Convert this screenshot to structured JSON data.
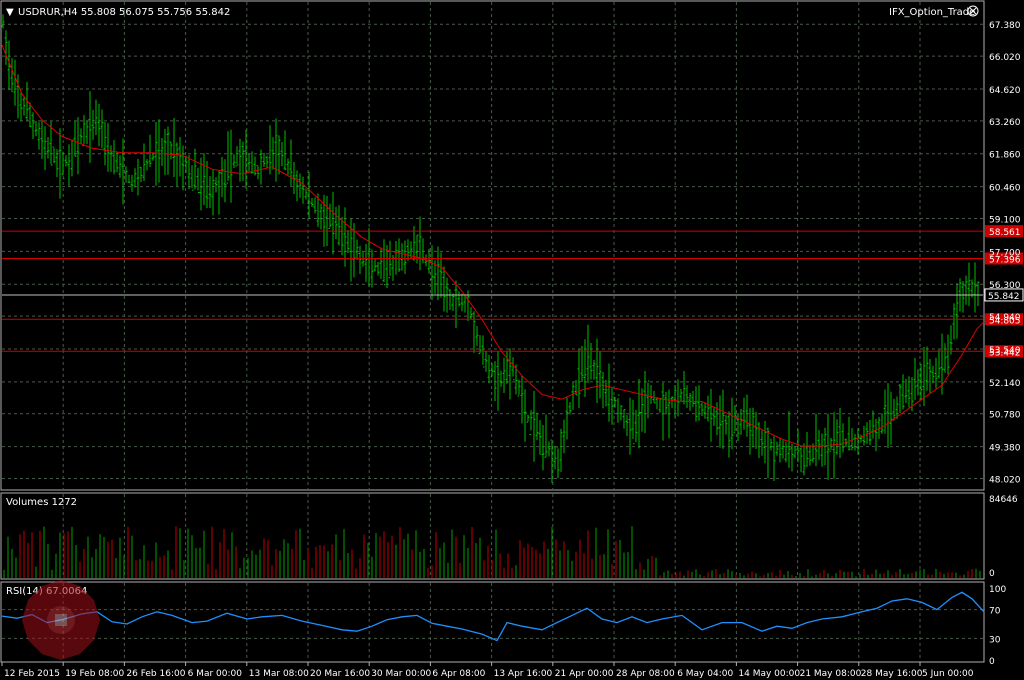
{
  "window": {
    "symbol_info": "USDRUR,H4  55.808 56.075 55.756 55.842",
    "indicator_name": "IFX_Option_Trade",
    "indicator_icon": "close-circle-icon"
  },
  "colors": {
    "background": "#000000",
    "grid": "#4a5a4a",
    "bull_bar": "#00c000",
    "ma_line": "#e00000",
    "hline": "#d00000",
    "price_line": "#c0c0c0",
    "rsi_line": "#1e90ff",
    "vol_up": "#00a000",
    "vol_down": "#c00000",
    "text": "#ffffff"
  },
  "chart_data": [
    {
      "type": "ohlc",
      "title": "USDRUR,H4",
      "y_ticks": [
        "67.380",
        "66.020",
        "64.620",
        "63.260",
        "61.860",
        "60.460",
        "59.100",
        "57.700",
        "56.300",
        "54.940",
        "53.540",
        "52.140",
        "50.780",
        "49.380",
        "48.020"
      ],
      "ylim": [
        47.7,
        67.9
      ],
      "x_ticks": [
        "12 Feb 2015",
        "19 Feb 08:00",
        "26 Feb 16:00",
        "6 Mar 00:00",
        "13 Mar 08:00",
        "20 Mar 16:00",
        "30 Mar 00:00",
        "6 Apr 08:00",
        "13 Apr 16:00",
        "21 Apr 00:00",
        "28 Apr 08:00",
        "6 May 04:00",
        "14 May 00:00",
        "21 May 08:00",
        "28 May 16:00",
        "5 Jun 00:00"
      ],
      "price_path": [
        [
          0,
          67.4
        ],
        [
          10,
          64.6
        ],
        [
          25,
          63.6
        ],
        [
          40,
          62.3
        ],
        [
          60,
          61.3
        ],
        [
          80,
          62.6
        ],
        [
          95,
          63.4
        ],
        [
          110,
          61.6
        ],
        [
          130,
          60.6
        ],
        [
          150,
          61.8
        ],
        [
          170,
          62.1
        ],
        [
          190,
          60.9
        ],
        [
          210,
          60.3
        ],
        [
          235,
          61.8
        ],
        [
          255,
          61.2
        ],
        [
          275,
          62.1
        ],
        [
          295,
          60.6
        ],
        [
          310,
          59.7
        ],
        [
          330,
          58.8
        ],
        [
          345,
          58.1
        ],
        [
          360,
          57.3
        ],
        [
          380,
          56.8
        ],
        [
          400,
          57.4
        ],
        [
          415,
          58.1
        ],
        [
          430,
          56.8
        ],
        [
          450,
          55.6
        ],
        [
          465,
          55.6
        ],
        [
          480,
          53.2
        ],
        [
          495,
          52.2
        ],
        [
          510,
          52.6
        ],
        [
          525,
          50.6
        ],
        [
          540,
          49.6
        ],
        [
          555,
          48.9
        ],
        [
          570,
          51.6
        ],
        [
          585,
          53.2
        ],
        [
          600,
          52.1
        ],
        [
          615,
          51.1
        ],
        [
          630,
          50.1
        ],
        [
          645,
          51.6
        ],
        [
          660,
          51.1
        ],
        [
          680,
          51.6
        ],
        [
          695,
          51.1
        ],
        [
          710,
          50.6
        ],
        [
          725,
          50.2
        ],
        [
          745,
          50.6
        ],
        [
          760,
          49.6
        ],
        [
          775,
          49.3
        ],
        [
          790,
          49.1
        ],
        [
          805,
          48.9
        ],
        [
          820,
          49.3
        ],
        [
          840,
          49.6
        ],
        [
          855,
          49.6
        ],
        [
          870,
          50.1
        ],
        [
          885,
          50.6
        ],
        [
          900,
          51.6
        ],
        [
          915,
          52.1
        ],
        [
          930,
          52.6
        ],
        [
          945,
          53.1
        ],
        [
          955,
          55.6
        ],
        [
          965,
          56.3
        ],
        [
          975,
          56.1
        ],
        [
          982,
          55.8
        ]
      ],
      "ma_path": [
        [
          0,
          66.5
        ],
        [
          20,
          64.4
        ],
        [
          40,
          63.3
        ],
        [
          60,
          62.6
        ],
        [
          90,
          62.1
        ],
        [
          120,
          61.9
        ],
        [
          150,
          61.9
        ],
        [
          180,
          61.8
        ],
        [
          210,
          61.2
        ],
        [
          240,
          61.0
        ],
        [
          270,
          61.3
        ],
        [
          300,
          60.6
        ],
        [
          320,
          59.8
        ],
        [
          340,
          59.0
        ],
        [
          360,
          58.3
        ],
        [
          380,
          57.8
        ],
        [
          400,
          57.6
        ],
        [
          420,
          57.4
        ],
        [
          440,
          57.0
        ],
        [
          460,
          56.0
        ],
        [
          480,
          54.8
        ],
        [
          500,
          53.4
        ],
        [
          520,
          52.4
        ],
        [
          540,
          51.6
        ],
        [
          560,
          51.4
        ],
        [
          580,
          51.8
        ],
        [
          600,
          52.0
        ],
        [
          620,
          51.8
        ],
        [
          640,
          51.6
        ],
        [
          660,
          51.4
        ],
        [
          680,
          51.3
        ],
        [
          700,
          51.3
        ],
        [
          720,
          50.9
        ],
        [
          740,
          50.5
        ],
        [
          760,
          50.1
        ],
        [
          780,
          49.7
        ],
        [
          800,
          49.4
        ],
        [
          820,
          49.4
        ],
        [
          840,
          49.5
        ],
        [
          860,
          49.8
        ],
        [
          880,
          50.2
        ],
        [
          900,
          50.8
        ],
        [
          920,
          51.4
        ],
        [
          940,
          52.0
        ],
        [
          960,
          53.3
        ],
        [
          975,
          54.4
        ],
        [
          982,
          54.7
        ]
      ],
      "horizontal_levels": [
        {
          "value": 58.561,
          "label": "58.561"
        },
        {
          "value": 57.396,
          "label": "57.396"
        },
        {
          "value": 54.805,
          "label": "54.805"
        },
        {
          "value": 53.442,
          "label": "53.442"
        }
      ],
      "current_price": {
        "value": 55.842,
        "label": "55.842"
      },
      "grid": true
    },
    {
      "type": "bar",
      "title": "Volumes 1272",
      "y_ticks": [
        "84646",
        "0"
      ],
      "ylim": [
        0,
        84646
      ],
      "current": 1272,
      "segments": [
        {
          "x_from": 0,
          "x_to": 660,
          "level": 0.45
        },
        {
          "x_from": 660,
          "x_to": 982,
          "level": 0.08
        }
      ]
    },
    {
      "type": "line",
      "title": "RSI(14) 67.0064",
      "y_ticks": [
        "100",
        "70",
        "30",
        "0"
      ],
      "ylim": [
        0,
        100
      ],
      "levels": [
        70,
        30
      ],
      "rsi_path": [
        [
          0,
          61
        ],
        [
          15,
          58
        ],
        [
          30,
          63
        ],
        [
          45,
          52
        ],
        [
          60,
          56
        ],
        [
          80,
          64
        ],
        [
          95,
          67
        ],
        [
          110,
          53
        ],
        [
          125,
          50
        ],
        [
          140,
          60
        ],
        [
          155,
          67
        ],
        [
          170,
          62
        ],
        [
          190,
          52
        ],
        [
          205,
          54
        ],
        [
          225,
          65
        ],
        [
          245,
          57
        ],
        [
          260,
          60
        ],
        [
          280,
          62
        ],
        [
          300,
          54
        ],
        [
          320,
          48
        ],
        [
          340,
          42
        ],
        [
          355,
          40
        ],
        [
          370,
          47
        ],
        [
          385,
          56
        ],
        [
          400,
          60
        ],
        [
          415,
          62
        ],
        [
          430,
          51
        ],
        [
          445,
          47
        ],
        [
          460,
          43
        ],
        [
          480,
          36
        ],
        [
          495,
          27
        ],
        [
          505,
          52
        ],
        [
          520,
          47
        ],
        [
          540,
          42
        ],
        [
          555,
          52
        ],
        [
          570,
          62
        ],
        [
          585,
          72
        ],
        [
          600,
          57
        ],
        [
          615,
          52
        ],
        [
          630,
          60
        ],
        [
          645,
          52
        ],
        [
          660,
          57
        ],
        [
          680,
          62
        ],
        [
          700,
          42
        ],
        [
          720,
          52
        ],
        [
          740,
          52
        ],
        [
          760,
          40
        ],
        [
          775,
          47
        ],
        [
          790,
          44
        ],
        [
          805,
          52
        ],
        [
          820,
          57
        ],
        [
          840,
          60
        ],
        [
          860,
          67
        ],
        [
          875,
          72
        ],
        [
          890,
          82
        ],
        [
          905,
          85
        ],
        [
          920,
          80
        ],
        [
          935,
          70
        ],
        [
          950,
          87
        ],
        [
          960,
          94
        ],
        [
          970,
          85
        ],
        [
          982,
          67
        ]
      ]
    }
  ]
}
